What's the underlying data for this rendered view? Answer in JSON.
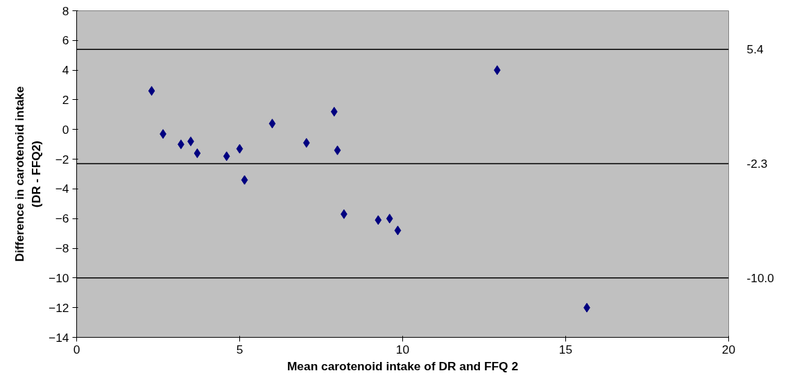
{
  "chart_data": {
    "type": "scatter",
    "xlabel": "Mean carotenoid intake of DR and FFQ 2",
    "ylabel": "Difference in carotenoid intake\n(DR - FFQ2)",
    "x": [
      2.3,
      2.65,
      3.2,
      3.5,
      3.7,
      4.6,
      5.0,
      5.15,
      6.0,
      7.05,
      7.9,
      8.0,
      8.2,
      9.25,
      9.6,
      9.85,
      12.9,
      15.65
    ],
    "series": [
      {
        "color": "#000080",
        "values": [
          2.6,
          -0.3,
          -1.0,
          -0.8,
          -1.6,
          -1.8,
          -1.3,
          -3.4,
          0.4,
          -0.9,
          1.2,
          -1.4,
          -5.7,
          -6.1,
          -6.0,
          -6.8,
          4.0,
          -12.0
        ]
      }
    ],
    "marker": "diamond",
    "xlim": [
      0,
      20
    ],
    "xticks": [
      0,
      5,
      10,
      15,
      20
    ],
    "ylim": [
      -14,
      8
    ],
    "yticks": [
      -14,
      -12,
      -10,
      -8,
      -6,
      -4,
      -2,
      0,
      2,
      4,
      6,
      8
    ],
    "grid": false,
    "ref_lines": [
      {
        "axis": "y",
        "value": 5.4,
        "label": "5.4",
        "color": "#000000"
      },
      {
        "axis": "y",
        "value": -2.3,
        "label": "-2.3",
        "color": "#000000"
      },
      {
        "axis": "y",
        "value": -10.0,
        "label": "-10.0",
        "color": "#000000"
      }
    ]
  }
}
